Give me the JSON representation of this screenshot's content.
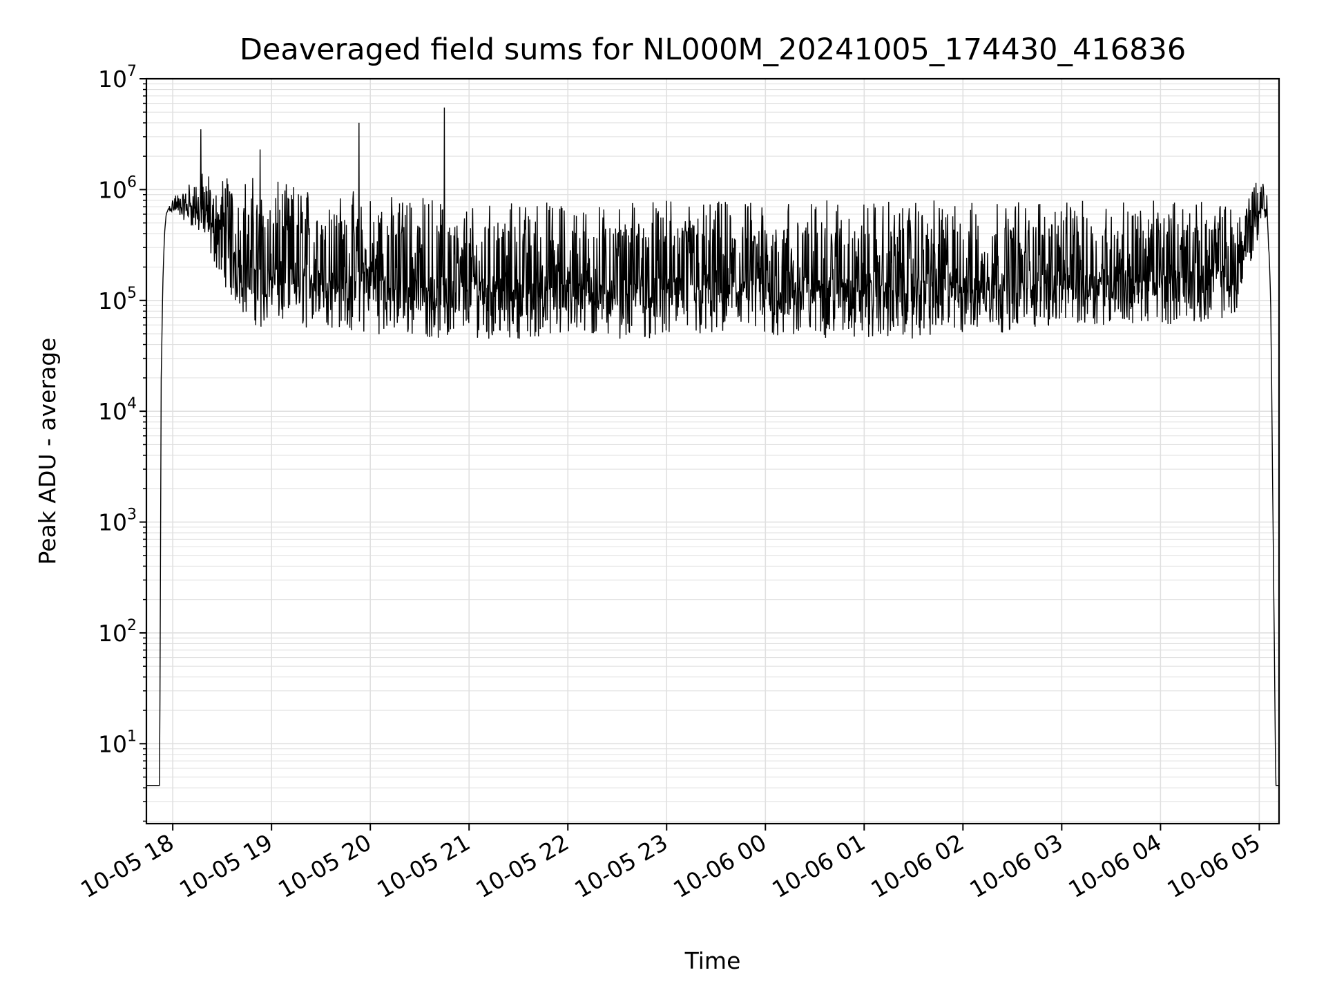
{
  "chart_data": {
    "type": "line",
    "title": "Deaveraged field sums for NL000M_20241005_174430_416836",
    "xlabel": "Time",
    "ylabel": "Peak ADU - average",
    "x_scale": "time",
    "y_scale": "log",
    "xlim": [
      "2024-10-05 17:44",
      "2024-10-06 05:12"
    ],
    "ylim": [
      1.9,
      10000000
    ],
    "x_ticks": [
      "10-05 18",
      "10-05 19",
      "10-05 20",
      "10-05 21",
      "10-05 22",
      "10-05 23",
      "10-06 00",
      "10-06 01",
      "10-06 02",
      "10-06 03",
      "10-06 04",
      "10-06 05"
    ],
    "y_ticks": [
      {
        "value": 10,
        "base": "10",
        "exp": "1"
      },
      {
        "value": 100,
        "base": "10",
        "exp": "2"
      },
      {
        "value": 1000,
        "base": "10",
        "exp": "3"
      },
      {
        "value": 10000,
        "base": "10",
        "exp": "4"
      },
      {
        "value": 100000,
        "base": "10",
        "exp": "5"
      },
      {
        "value": 1000000,
        "base": "10",
        "exp": "6"
      },
      {
        "value": 10000000,
        "base": "10",
        "exp": "7"
      }
    ],
    "grid": true,
    "line_color": "#000000",
    "grid_color": "#e0e0e0",
    "series": [
      {
        "x": [
          "2024-10-05 17:44",
          "2024-10-05 17:50",
          "2024-10-05 17:52",
          "2024-10-05 17:53",
          "2024-10-05 17:54",
          "2024-10-05 17:55",
          "2024-10-05 17:56",
          "2024-10-05 17:58",
          "2024-10-05 18:00",
          "2024-10-05 18:05",
          "2024-10-05 18:10",
          "2024-10-05 18:15",
          "2024-10-05 18:17",
          "2024-10-05 18:20",
          "2024-10-05 18:30",
          "2024-10-05 18:40",
          "2024-10-05 18:50",
          "2024-10-05 18:53",
          "2024-10-05 19:00",
          "2024-10-05 19:20",
          "2024-10-05 19:40",
          "2024-10-05 19:50",
          "2024-10-05 19:53",
          "2024-10-05 20:00",
          "2024-10-05 20:20",
          "2024-10-05 20:40",
          "2024-10-05 20:45",
          "2024-10-05 21:00",
          "2024-10-05 21:30",
          "2024-10-05 22:00",
          "2024-10-05 22:30",
          "2024-10-05 23:00",
          "2024-10-05 23:30",
          "2024-10-06 00:00",
          "2024-10-06 00:30",
          "2024-10-06 01:00",
          "2024-10-06 01:30",
          "2024-10-06 02:00",
          "2024-10-06 02:30",
          "2024-10-06 03:00",
          "2024-10-06 03:30",
          "2024-10-06 04:00",
          "2024-10-06 04:30",
          "2024-10-06 04:45",
          "2024-10-06 05:00",
          "2024-10-06 05:02",
          "2024-10-06 05:05",
          "2024-10-06 05:07",
          "2024-10-06 05:10",
          "2024-10-06 05:12"
        ],
        "y": [
          4.2,
          4.2,
          4.2,
          20000,
          150000,
          400000,
          600000,
          700000,
          800000,
          900000,
          700000,
          1000000,
          3500000,
          800000,
          300000,
          150000,
          200000,
          2300000,
          300000,
          200000,
          150000,
          200000,
          4000000,
          150000,
          120000,
          100000,
          5500000,
          90000,
          80000,
          80000,
          70000,
          70000,
          70000,
          70000,
          70000,
          70000,
          70000,
          70000,
          80000,
          100000,
          120000,
          120000,
          120000,
          300000,
          1200000,
          1000000,
          700000,
          100000,
          4.2,
          4.2
        ],
        "band_low": [
          4.2,
          4.2,
          4.2,
          20000,
          150000,
          400000,
          600000,
          650000,
          600000,
          550000,
          500000,
          400000,
          400000,
          300000,
          150000,
          80000,
          60000,
          55000,
          60000,
          55000,
          55000,
          50000,
          50000,
          50000,
          48000,
          45000,
          42000,
          45000,
          45000,
          45000,
          45000,
          45000,
          45000,
          45000,
          45000,
          45000,
          45000,
          48000,
          52000,
          60000,
          60000,
          60000,
          65000,
          70000,
          400000,
          600000,
          500000,
          80000,
          4.2,
          4.2
        ],
        "band_high": [
          4.2,
          4.2,
          4.2,
          20000,
          150000,
          400000,
          600000,
          800000,
          900000,
          1000000,
          1200000,
          1400000,
          1400000,
          1500000,
          1500000,
          1400000,
          1300000,
          1300000,
          1200000,
          1100000,
          1000000,
          1000000,
          1000000,
          900000,
          900000,
          900000,
          800000,
          800000,
          800000,
          800000,
          800000,
          800000,
          800000,
          800000,
          800000,
          800000,
          800000,
          800000,
          800000,
          800000,
          800000,
          800000,
          800000,
          800000,
          1400000,
          1300000,
          900000,
          100000,
          4.2,
          4.2
        ]
      }
    ]
  }
}
